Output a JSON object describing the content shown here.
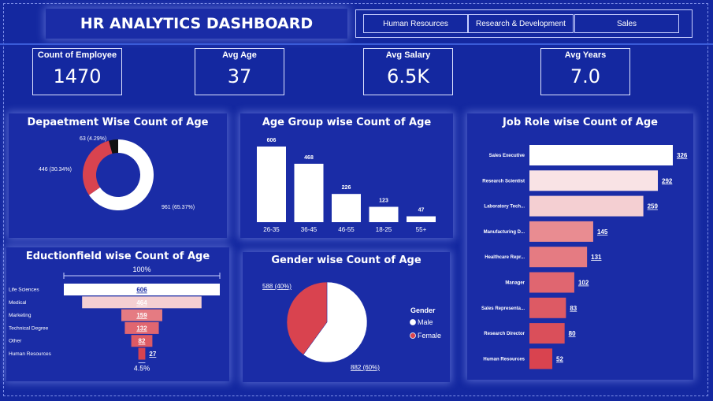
{
  "header": {
    "title": "HR ANALYTICS DASHBOARD"
  },
  "slicer": {
    "items": [
      "Human Resources",
      "Research & Development",
      "Sales"
    ]
  },
  "kpis": [
    {
      "label": "Count of Employee",
      "value": "1470"
    },
    {
      "label": "Avg Age",
      "value": "37"
    },
    {
      "label": "Avg Salary",
      "value": "6.5K"
    },
    {
      "label": "Avg Years",
      "value": "7.0"
    }
  ],
  "colors": {
    "background": "#1428a0",
    "panel": "#1a2ca6",
    "white": "#ffffff",
    "red": "#d9434f",
    "black": "#111111"
  },
  "chart_data": [
    {
      "type": "pie",
      "title": "Depaetment Wise Count of Age",
      "slices": [
        {
          "value": 961,
          "label": "961 (65.37%)",
          "color": "#ffffff"
        },
        {
          "value": 446,
          "label": "446 (30.34%)",
          "color": "#d9434f"
        },
        {
          "value": 63,
          "label": "63 (4.29%)",
          "color": "#111111"
        }
      ]
    },
    {
      "type": "bar",
      "title": "Age Group wise Count of Age",
      "categories": [
        "26-35",
        "36-45",
        "46-55",
        "18-25",
        "55+"
      ],
      "values": [
        606,
        468,
        226,
        123,
        47
      ]
    },
    {
      "type": "bar",
      "title": "Job Role wise Count of Age",
      "orientation": "horizontal",
      "categories": [
        "Sales Executive",
        "Research Scientist",
        "Laboratory Tech...",
        "Manufacturing D...",
        "Healthcare Repr...",
        "Manager",
        "Sales Representa...",
        "Research Director",
        "Human Resources"
      ],
      "values": [
        326,
        292,
        259,
        145,
        131,
        102,
        83,
        80,
        52
      ],
      "colors": [
        "#ffffff",
        "#f9e3e5",
        "#f4cfd2",
        "#e98c91",
        "#e57b82",
        "#e06670",
        "#dd5a64",
        "#da4f5a",
        "#d9434f"
      ]
    },
    {
      "type": "bar",
      "subtype": "funnel",
      "title": "Eductionfield wise Count of Age",
      "categories": [
        "Life Sciences",
        "Medical",
        "Marketing",
        "Technical Degree",
        "Other",
        "Human Resources"
      ],
      "values": [
        606,
        464,
        159,
        132,
        82,
        27
      ],
      "top_label": "100%",
      "bottom_label": "4.5%",
      "colors": [
        "#ffffff",
        "#f4cfd2",
        "#e57b82",
        "#e06670",
        "#dd5a64",
        "#d9434f"
      ]
    },
    {
      "type": "pie",
      "title": "Gender wise Count of Age",
      "slices": [
        {
          "value": 882,
          "label": "882 (60%)",
          "color": "#ffffff"
        },
        {
          "value": 588,
          "label": "588 (40%)",
          "color": "#d9434f"
        }
      ],
      "legend": {
        "title": "Gender",
        "items": [
          "Male",
          "Female"
        ]
      }
    }
  ]
}
